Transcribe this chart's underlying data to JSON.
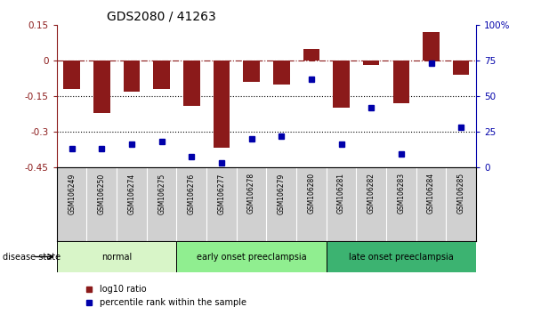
{
  "title": "GDS2080 / 41263",
  "samples": [
    "GSM106249",
    "GSM106250",
    "GSM106274",
    "GSM106275",
    "GSM106276",
    "GSM106277",
    "GSM106278",
    "GSM106279",
    "GSM106280",
    "GSM106281",
    "GSM106282",
    "GSM106283",
    "GSM106284",
    "GSM106285"
  ],
  "log10_ratio": [
    -0.12,
    -0.22,
    -0.13,
    -0.12,
    -0.19,
    -0.37,
    -0.09,
    -0.1,
    0.05,
    -0.2,
    -0.02,
    -0.18,
    0.12,
    -0.06
  ],
  "percentile_rank": [
    13,
    13,
    16,
    18,
    7,
    3,
    20,
    22,
    62,
    16,
    42,
    9,
    73,
    28
  ],
  "ylim_left": [
    -0.45,
    0.15
  ],
  "ylim_right": [
    0,
    100
  ],
  "yticks_left": [
    -0.45,
    -0.3,
    -0.15,
    0,
    0.15
  ],
  "ytick_labels_left": [
    "-0.45",
    "-0.3",
    "-0.15",
    "0",
    "0.15"
  ],
  "yticks_right": [
    0,
    25,
    50,
    75,
    100
  ],
  "ytick_labels_right": [
    "0",
    "25",
    "50",
    "75",
    "100%"
  ],
  "dotted_lines": [
    -0.15,
    -0.3
  ],
  "bar_color": "#8B1A1A",
  "dot_color": "#0000AA",
  "disease_groups": [
    {
      "label": "normal",
      "start": 0,
      "end": 4,
      "color": "#d8f5c8"
    },
    {
      "label": "early onset preeclampsia",
      "start": 4,
      "end": 9,
      "color": "#90ee90"
    },
    {
      "label": "late onset preeclampsia",
      "start": 9,
      "end": 14,
      "color": "#3cb371"
    }
  ],
  "legend_items": [
    {
      "label": "log10 ratio",
      "color": "#8B1A1A"
    },
    {
      "label": "percentile rank within the sample",
      "color": "#0000AA"
    }
  ],
  "disease_state_label": "disease state",
  "title_fontsize": 10,
  "tick_fontsize": 7.5,
  "label_fontsize": 7.5
}
